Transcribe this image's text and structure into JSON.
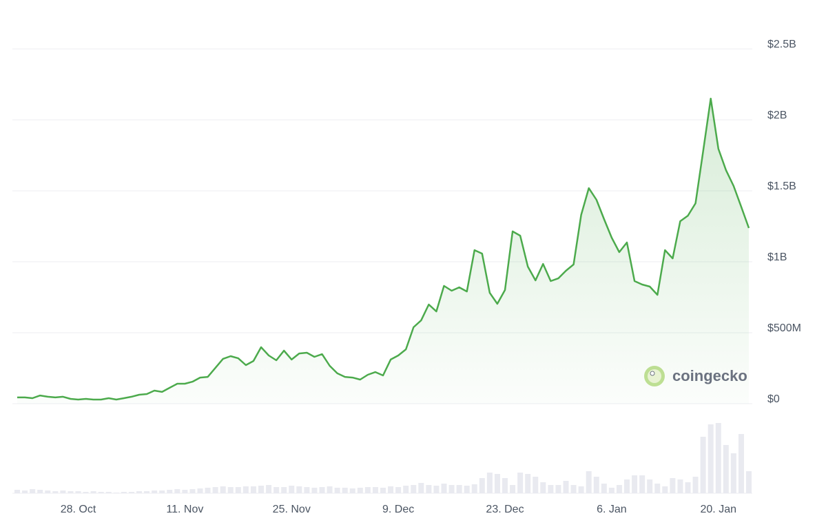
{
  "chart_data": {
    "type": "line",
    "categories": [
      null,
      null,
      null,
      null,
      null,
      null,
      null,
      null,
      "28. Oct",
      null,
      null,
      null,
      null,
      null,
      null,
      null,
      null,
      null,
      null,
      null,
      null,
      null,
      "11. Nov",
      null,
      null,
      null,
      null,
      null,
      null,
      null,
      null,
      null,
      null,
      null,
      null,
      null,
      "25. Nov",
      null,
      null,
      null,
      null,
      null,
      null,
      null,
      null,
      null,
      null,
      null,
      null,
      null,
      "9. Dec",
      null,
      null,
      null,
      null,
      null,
      null,
      null,
      null,
      null,
      null,
      null,
      null,
      null,
      "23. Dec",
      null,
      null,
      null,
      null,
      null,
      null,
      null,
      null,
      null,
      null,
      null,
      null,
      null,
      "6. Jan",
      null,
      null,
      null,
      null,
      null,
      null,
      null,
      null,
      null,
      null,
      null,
      null,
      null,
      "20. Jan",
      null,
      null,
      null,
      null
    ],
    "series": [
      {
        "color": "#4caa4c",
        "values": [
          44000000,
          44000000,
          39000000,
          58000000,
          49000000,
          44000000,
          49000000,
          34000000,
          29000000,
          34000000,
          29000000,
          29000000,
          39000000,
          29000000,
          39000000,
          49000000,
          63000000,
          68000000,
          92000000,
          83000000,
          112000000,
          141000000,
          141000000,
          155000000,
          184000000,
          189000000,
          252000000,
          316000000,
          335000000,
          320000000,
          272000000,
          301000000,
          398000000,
          340000000,
          306000000,
          374000000,
          311000000,
          354000000,
          359000000,
          330000000,
          349000000,
          267000000,
          214000000,
          189000000,
          184000000,
          170000000,
          204000000,
          223000000,
          199000000,
          311000000,
          340000000,
          383000000,
          539000000,
          587000000,
          699000000,
          650000000,
          830000000,
          796000000,
          820000000,
          791000000,
          1082000000,
          1058000000,
          781000000,
          704000000,
          801000000,
          1214000000,
          1184000000,
          966000000,
          869000000,
          985000000,
          864000000,
          883000000,
          937000000,
          981000000,
          1330000000,
          1519000000,
          1437000000,
          1301000000,
          1170000000,
          1068000000,
          1136000000,
          864000000,
          840000000,
          825000000,
          767000000,
          1082000000,
          1024000000,
          1286000000,
          1325000000,
          1412000000,
          1777000000,
          2150000000,
          1796000000,
          1646000000,
          1534000000,
          1388000000,
          1238000000
        ]
      },
      {
        "type": "bar",
        "axis": "y2",
        "color": "#e9eaf0",
        "values": [
          5,
          4,
          6,
          5,
          4,
          3,
          4,
          3,
          3,
          2,
          3,
          2,
          2,
          1,
          2,
          2,
          3,
          3,
          4,
          4,
          5,
          6,
          5,
          6,
          7,
          8,
          9,
          10,
          9,
          9,
          10,
          10,
          11,
          12,
          9,
          9,
          11,
          10,
          9,
          8,
          9,
          10,
          8,
          8,
          7,
          8,
          9,
          9,
          8,
          10,
          9,
          11,
          12,
          15,
          12,
          11,
          14,
          12,
          12,
          11,
          13,
          22,
          30,
          28,
          22,
          12,
          30,
          28,
          24,
          16,
          12,
          12,
          18,
          12,
          10,
          32,
          24,
          14,
          8,
          12,
          20,
          26,
          26,
          20,
          14,
          10,
          22,
          20,
          16,
          24,
          82,
          100,
          102,
          70,
          58,
          86,
          32
        ]
      }
    ],
    "ylim": [
      0,
      2500000000
    ],
    "yticks": [
      {
        "value": 0,
        "label": "$0"
      },
      {
        "value": 500000000,
        "label": "$500M"
      },
      {
        "value": 1000000000,
        "label": "$1B"
      },
      {
        "value": 1500000000,
        "label": "$1.5B"
      },
      {
        "value": 2000000000,
        "label": "$2B"
      },
      {
        "value": 2500000000,
        "label": "$2.5B"
      }
    ],
    "y2lim": [
      0,
      110
    ],
    "grid": true,
    "watermark": "coingecko"
  }
}
